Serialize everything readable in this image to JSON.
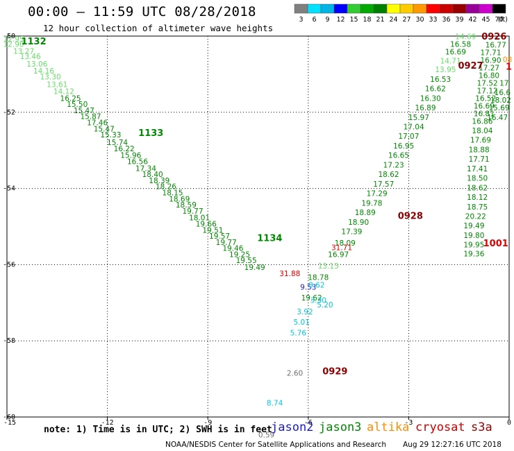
{
  "header": {
    "title": "00:00 – 11:59 UTC 08/28/2018",
    "subtitle": "12 hour collection of altimeter wave heights"
  },
  "color_scale": {
    "labels": [
      "3",
      "6",
      "9",
      "12",
      "15",
      "18",
      "21",
      "24",
      "27",
      "30",
      "33",
      "36",
      "39",
      "42",
      "45",
      "70"
    ],
    "unit": "(ft)",
    "colors": [
      "#808080",
      "#00e0ff",
      "#00b4e6",
      "#0000ff",
      "#33cc33",
      "#00aa00",
      "#008000",
      "#ffff00",
      "#ffcc00",
      "#ff9900",
      "#ff0000",
      "#cc0000",
      "#990000",
      "#990099",
      "#cc00cc",
      "#000000"
    ]
  },
  "footer": {
    "note": "note: 1) Time is in UTC; 2) SWH is in feet",
    "satellites": [
      {
        "name": "jason2",
        "color": "#1a1acc"
      },
      {
        "name": "jason3",
        "color": "#008800"
      },
      {
        "name": "altika",
        "color": "#ff8c00"
      },
      {
        "name": "cryosat",
        "color": "#cc0000"
      },
      {
        "name": "s3a",
        "color": "#990000"
      }
    ],
    "credit": "NOAA/NESDIS Center for Satellite Applications and Research",
    "timestamp": "Aug 29 12:27:16 UTC 2018"
  },
  "chart_data": {
    "type": "scatter",
    "title": "00:00 – 11:59 UTC 08/28/2018",
    "subtitle": "12 hour collection of altimeter wave heights",
    "xlim": [
      -15,
      0
    ],
    "ylim": [
      -60,
      -50
    ],
    "x_ticks": [
      -15,
      -12,
      -9,
      -6,
      -3,
      0
    ],
    "x_tick_labels": [
      "-15",
      "-12",
      "-9",
      "-6",
      "-3",
      "0"
    ],
    "y_ticks": [
      -50,
      -52,
      -54,
      -56,
      -58,
      -60
    ],
    "y_tick_labels": [
      "-50",
      "-52",
      "-54",
      "-56",
      "-58",
      "-60"
    ],
    "grid": true,
    "colors": {
      "light_green": "#66dd66",
      "mid_green": "#33bb33",
      "green": "#008800",
      "cyan": "#00c8e0",
      "blue": "#1a1acc",
      "red": "#dd0000",
      "dark_red": "#8b0000",
      "gray": "#707070",
      "orange": "#ff8c00"
    },
    "series": [
      {
        "name": "jason3",
        "points": [
          {
            "x": -14.8,
            "y": -50.15,
            "v": "12.95",
            "c": "light_green"
          },
          {
            "x": -14.8,
            "y": -50.28,
            "v": "12.90",
            "c": "light_green"
          },
          {
            "x": -14.5,
            "y": -50.46,
            "v": "13.27",
            "c": "light_green"
          },
          {
            "x": -14.3,
            "y": -50.6,
            "v": "13.46",
            "c": "light_green"
          },
          {
            "x": -14.1,
            "y": -50.8,
            "v": "13.06",
            "c": "light_green"
          },
          {
            "x": -13.9,
            "y": -50.98,
            "v": "14.16",
            "c": "light_green"
          },
          {
            "x": -13.7,
            "y": -51.14,
            "v": "13.30",
            "c": "light_green"
          },
          {
            "x": -13.5,
            "y": -51.34,
            "v": "13.61",
            "c": "light_green"
          },
          {
            "x": -13.3,
            "y": -51.52,
            "v": "14.12",
            "c": "light_green"
          },
          {
            "x": -13.1,
            "y": -51.7,
            "v": "16.25",
            "c": "green"
          },
          {
            "x": -12.9,
            "y": -51.86,
            "v": "15.50",
            "c": "green"
          },
          {
            "x": -12.7,
            "y": -52.02,
            "v": "15.47",
            "c": "green"
          },
          {
            "x": -12.5,
            "y": -52.18,
            "v": "15.87",
            "c": "green"
          },
          {
            "x": -12.3,
            "y": -52.34,
            "v": "17.46",
            "c": "green"
          },
          {
            "x": -12.1,
            "y": -52.5,
            "v": "15.47",
            "c": "green"
          },
          {
            "x": -11.9,
            "y": -52.66,
            "v": "15.33",
            "c": "green"
          },
          {
            "x": -11.7,
            "y": -52.86,
            "v": "15.74",
            "c": "green"
          },
          {
            "x": -11.5,
            "y": -53.02,
            "v": "16.22",
            "c": "green"
          },
          {
            "x": -11.3,
            "y": -53.2,
            "v": "15.96",
            "c": "green"
          },
          {
            "x": -11.1,
            "y": -53.36,
            "v": "16.56",
            "c": "green"
          },
          {
            "x": -10.85,
            "y": -53.54,
            "v": "17.34",
            "c": "green"
          },
          {
            "x": -10.65,
            "y": -53.7,
            "v": "18.40",
            "c": "green"
          },
          {
            "x": -10.45,
            "y": -53.86,
            "v": "18.39",
            "c": "green"
          },
          {
            "x": -10.25,
            "y": -54.02,
            "v": "18.26",
            "c": "green"
          },
          {
            "x": -10.05,
            "y": -54.18,
            "v": "18.15",
            "c": "green"
          },
          {
            "x": -9.85,
            "y": -54.34,
            "v": "18.69",
            "c": "green"
          },
          {
            "x": -9.65,
            "y": -54.5,
            "v": "18.59",
            "c": "green"
          },
          {
            "x": -9.45,
            "y": -54.66,
            "v": "19.77",
            "c": "green"
          },
          {
            "x": -9.25,
            "y": -54.84,
            "v": "18.01",
            "c": "green"
          },
          {
            "x": -9.05,
            "y": -55.0,
            "v": "19.66",
            "c": "green"
          },
          {
            "x": -8.85,
            "y": -55.16,
            "v": "19.51",
            "c": "green"
          },
          {
            "x": -8.65,
            "y": -55.32,
            "v": "19.57",
            "c": "green"
          },
          {
            "x": -8.45,
            "y": -55.48,
            "v": "19.77",
            "c": "green"
          },
          {
            "x": -8.25,
            "y": -55.64,
            "v": "19.46",
            "c": "green"
          },
          {
            "x": -8.05,
            "y": -55.8,
            "v": "19.25",
            "c": "green"
          },
          {
            "x": -7.85,
            "y": -55.96,
            "v": "19.55",
            "c": "green"
          },
          {
            "x": -7.6,
            "y": -56.14,
            "v": "19.49",
            "c": "green"
          },
          {
            "x": -5.9,
            "y": -56.94,
            "v": "19.62",
            "c": "green"
          },
          {
            "x": -5.7,
            "y": -56.4,
            "v": "18.78",
            "c": "green"
          },
          {
            "x": -5.4,
            "y": -56.1,
            "v": "13.15",
            "c": "light_green"
          },
          {
            "x": -5.1,
            "y": -55.8,
            "v": "16.97",
            "c": "green"
          },
          {
            "x": -4.9,
            "y": -55.5,
            "v": "18.09",
            "c": "green"
          },
          {
            "x": -4.7,
            "y": -55.2,
            "v": "17.39",
            "c": "green"
          },
          {
            "x": -4.5,
            "y": -54.95,
            "v": "18.90",
            "c": "green"
          },
          {
            "x": -4.3,
            "y": -54.7,
            "v": "18.89",
            "c": "green"
          },
          {
            "x": -4.1,
            "y": -54.45,
            "v": "19.78",
            "c": "green"
          },
          {
            "x": -3.95,
            "y": -54.2,
            "v": "17.29",
            "c": "green"
          },
          {
            "x": -3.75,
            "y": -53.95,
            "v": "17.57",
            "c": "green"
          },
          {
            "x": -3.6,
            "y": -53.7,
            "v": "18.62",
            "c": "green"
          },
          {
            "x": -3.45,
            "y": -53.45,
            "v": "17.23",
            "c": "green"
          },
          {
            "x": -3.3,
            "y": -53.2,
            "v": "16.65",
            "c": "green"
          },
          {
            "x": -3.15,
            "y": -52.95,
            "v": "16.95",
            "c": "green"
          },
          {
            "x": -3.0,
            "y": -52.7,
            "v": "17.07",
            "c": "green"
          },
          {
            "x": -2.85,
            "y": -52.45,
            "v": "17.04",
            "c": "green"
          },
          {
            "x": -2.7,
            "y": -52.2,
            "v": "15.97",
            "c": "green"
          },
          {
            "x": -2.5,
            "y": -51.95,
            "v": "16.89",
            "c": "green"
          },
          {
            "x": -2.35,
            "y": -51.7,
            "v": "16.30",
            "c": "green"
          },
          {
            "x": -2.2,
            "y": -51.45,
            "v": "16.62",
            "c": "green"
          },
          {
            "x": -2.05,
            "y": -51.2,
            "v": "16.53",
            "c": "green"
          },
          {
            "x": -1.9,
            "y": -50.95,
            "v": "13.95",
            "c": "light_green"
          },
          {
            "x": -1.75,
            "y": -50.72,
            "v": "14.71",
            "c": "light_green"
          },
          {
            "x": -1.6,
            "y": -50.48,
            "v": "16.69",
            "c": "green"
          },
          {
            "x": -1.45,
            "y": -50.28,
            "v": "16.58",
            "c": "green"
          },
          {
            "x": -1.3,
            "y": -50.08,
            "v": "14.69",
            "c": "light_green"
          },
          {
            "x": -1.05,
            "y": -55.78,
            "v": "19.36",
            "c": "green"
          },
          {
            "x": -1.05,
            "y": -55.55,
            "v": "19.95",
            "c": "green"
          },
          {
            "x": -1.05,
            "y": -55.3,
            "v": "19.80",
            "c": "green"
          },
          {
            "x": -1.05,
            "y": -55.05,
            "v": "19.49",
            "c": "green"
          },
          {
            "x": -1.0,
            "y": -54.8,
            "v": "20.22",
            "c": "green"
          },
          {
            "x": -0.95,
            "y": -54.55,
            "v": "18.75",
            "c": "green"
          },
          {
            "x": -0.95,
            "y": -54.3,
            "v": "18.12",
            "c": "green"
          },
          {
            "x": -0.95,
            "y": -54.05,
            "v": "18.62",
            "c": "green"
          },
          {
            "x": -0.95,
            "y": -53.8,
            "v": "18.50",
            "c": "green"
          },
          {
            "x": -0.95,
            "y": -53.55,
            "v": "17.41",
            "c": "green"
          },
          {
            "x": -0.9,
            "y": -53.3,
            "v": "17.71",
            "c": "green"
          },
          {
            "x": -0.9,
            "y": -53.05,
            "v": "18.88",
            "c": "green"
          },
          {
            "x": -0.85,
            "y": -52.8,
            "v": "17.69",
            "c": "green"
          },
          {
            "x": -0.8,
            "y": -52.55,
            "v": "18.04",
            "c": "green"
          },
          {
            "x": -0.8,
            "y": -52.3,
            "v": "16.86",
            "c": "green"
          },
          {
            "x": -0.75,
            "y": -52.1,
            "v": "16.81",
            "c": "green"
          },
          {
            "x": -0.75,
            "y": -51.9,
            "v": "16.69",
            "c": "green"
          },
          {
            "x": -0.7,
            "y": -51.7,
            "v": "16.52",
            "c": "green"
          },
          {
            "x": -0.65,
            "y": -51.5,
            "v": "17.12",
            "c": "green"
          },
          {
            "x": -0.65,
            "y": -51.3,
            "v": "17.52",
            "c": "green"
          },
          {
            "x": -0.6,
            "y": -51.1,
            "v": "16.80",
            "c": "green"
          },
          {
            "x": -0.6,
            "y": -50.9,
            "v": "17.27",
            "c": "green"
          },
          {
            "x": -0.55,
            "y": -50.7,
            "v": "16.90",
            "c": "green"
          },
          {
            "x": -0.55,
            "y": -50.5,
            "v": "17.71",
            "c": "green"
          },
          {
            "x": -0.4,
            "y": -50.3,
            "v": "16.77",
            "c": "green"
          },
          {
            "x": -0.35,
            "y": -52.2,
            "v": "16.47",
            "c": "green"
          },
          {
            "x": -0.3,
            "y": -51.95,
            "v": "15.69",
            "c": "green"
          },
          {
            "x": -0.25,
            "y": -51.75,
            "v": "18.02",
            "c": "green"
          },
          {
            "x": -0.2,
            "y": -51.55,
            "v": "16.6",
            "c": "green"
          },
          {
            "x": -0.15,
            "y": -51.3,
            "v": "17",
            "c": "green"
          }
        ]
      },
      {
        "name": "jason2",
        "points": [
          {
            "x": -6.0,
            "y": -56.66,
            "v": "9.53",
            "c": "blue"
          }
        ]
      },
      {
        "name": "cryosat",
        "points": [
          {
            "x": -6.55,
            "y": -56.3,
            "v": "31.88",
            "c": "red"
          },
          {
            "x": -5.0,
            "y": -55.62,
            "v": "31.71",
            "c": "red"
          }
        ]
      },
      {
        "name": "cyan_points",
        "points": [
          {
            "x": -5.75,
            "y": -56.6,
            "v": "8.62",
            "c": "cyan"
          },
          {
            "x": -5.7,
            "y": -57.0,
            "v": "3.30",
            "c": "cyan"
          },
          {
            "x": -5.5,
            "y": -57.12,
            "v": "5.20",
            "c": "cyan"
          },
          {
            "x": -6.1,
            "y": -57.3,
            "v": "3.92",
            "c": "cyan"
          },
          {
            "x": -6.2,
            "y": -57.58,
            "v": "5.01",
            "c": "cyan"
          },
          {
            "x": -6.3,
            "y": -57.86,
            "v": "5.76",
            "c": "cyan"
          },
          {
            "x": -7.0,
            "y": -59.7,
            "v": "8.74",
            "c": "cyan"
          }
        ]
      },
      {
        "name": "gray_points",
        "points": [
          {
            "x": -6.4,
            "y": -58.92,
            "v": "2.60",
            "c": "gray"
          },
          {
            "x": -7.25,
            "y": -60.54,
            "v": "0.59",
            "c": "gray"
          }
        ]
      },
      {
        "name": "altika",
        "points": [
          {
            "x": -0.05,
            "y": -50.68,
            "v": "08",
            "c": "orange"
          }
        ]
      }
    ],
    "pass_labels": [
      {
        "x": -14.2,
        "y": -50.22,
        "text": "1132",
        "c": "green"
      },
      {
        "x": -10.7,
        "y": -52.62,
        "text": "1133",
        "c": "green"
      },
      {
        "x": -7.15,
        "y": -55.38,
        "text": "1134",
        "c": "green"
      },
      {
        "x": -0.45,
        "y": -50.09,
        "text": "0926",
        "c": "dark_red"
      },
      {
        "x": -1.15,
        "y": -50.86,
        "text": "0927",
        "c": "dark_red"
      },
      {
        "x": -2.95,
        "y": -54.8,
        "text": "0928",
        "c": "dark_red"
      },
      {
        "x": -5.2,
        "y": -58.88,
        "text": "0929",
        "c": "dark_red"
      },
      {
        "x": -0.4,
        "y": -55.52,
        "text": "1001",
        "c": "red"
      },
      {
        "x": -0.01,
        "y": -50.88,
        "text": "1",
        "c": "red"
      }
    ]
  }
}
